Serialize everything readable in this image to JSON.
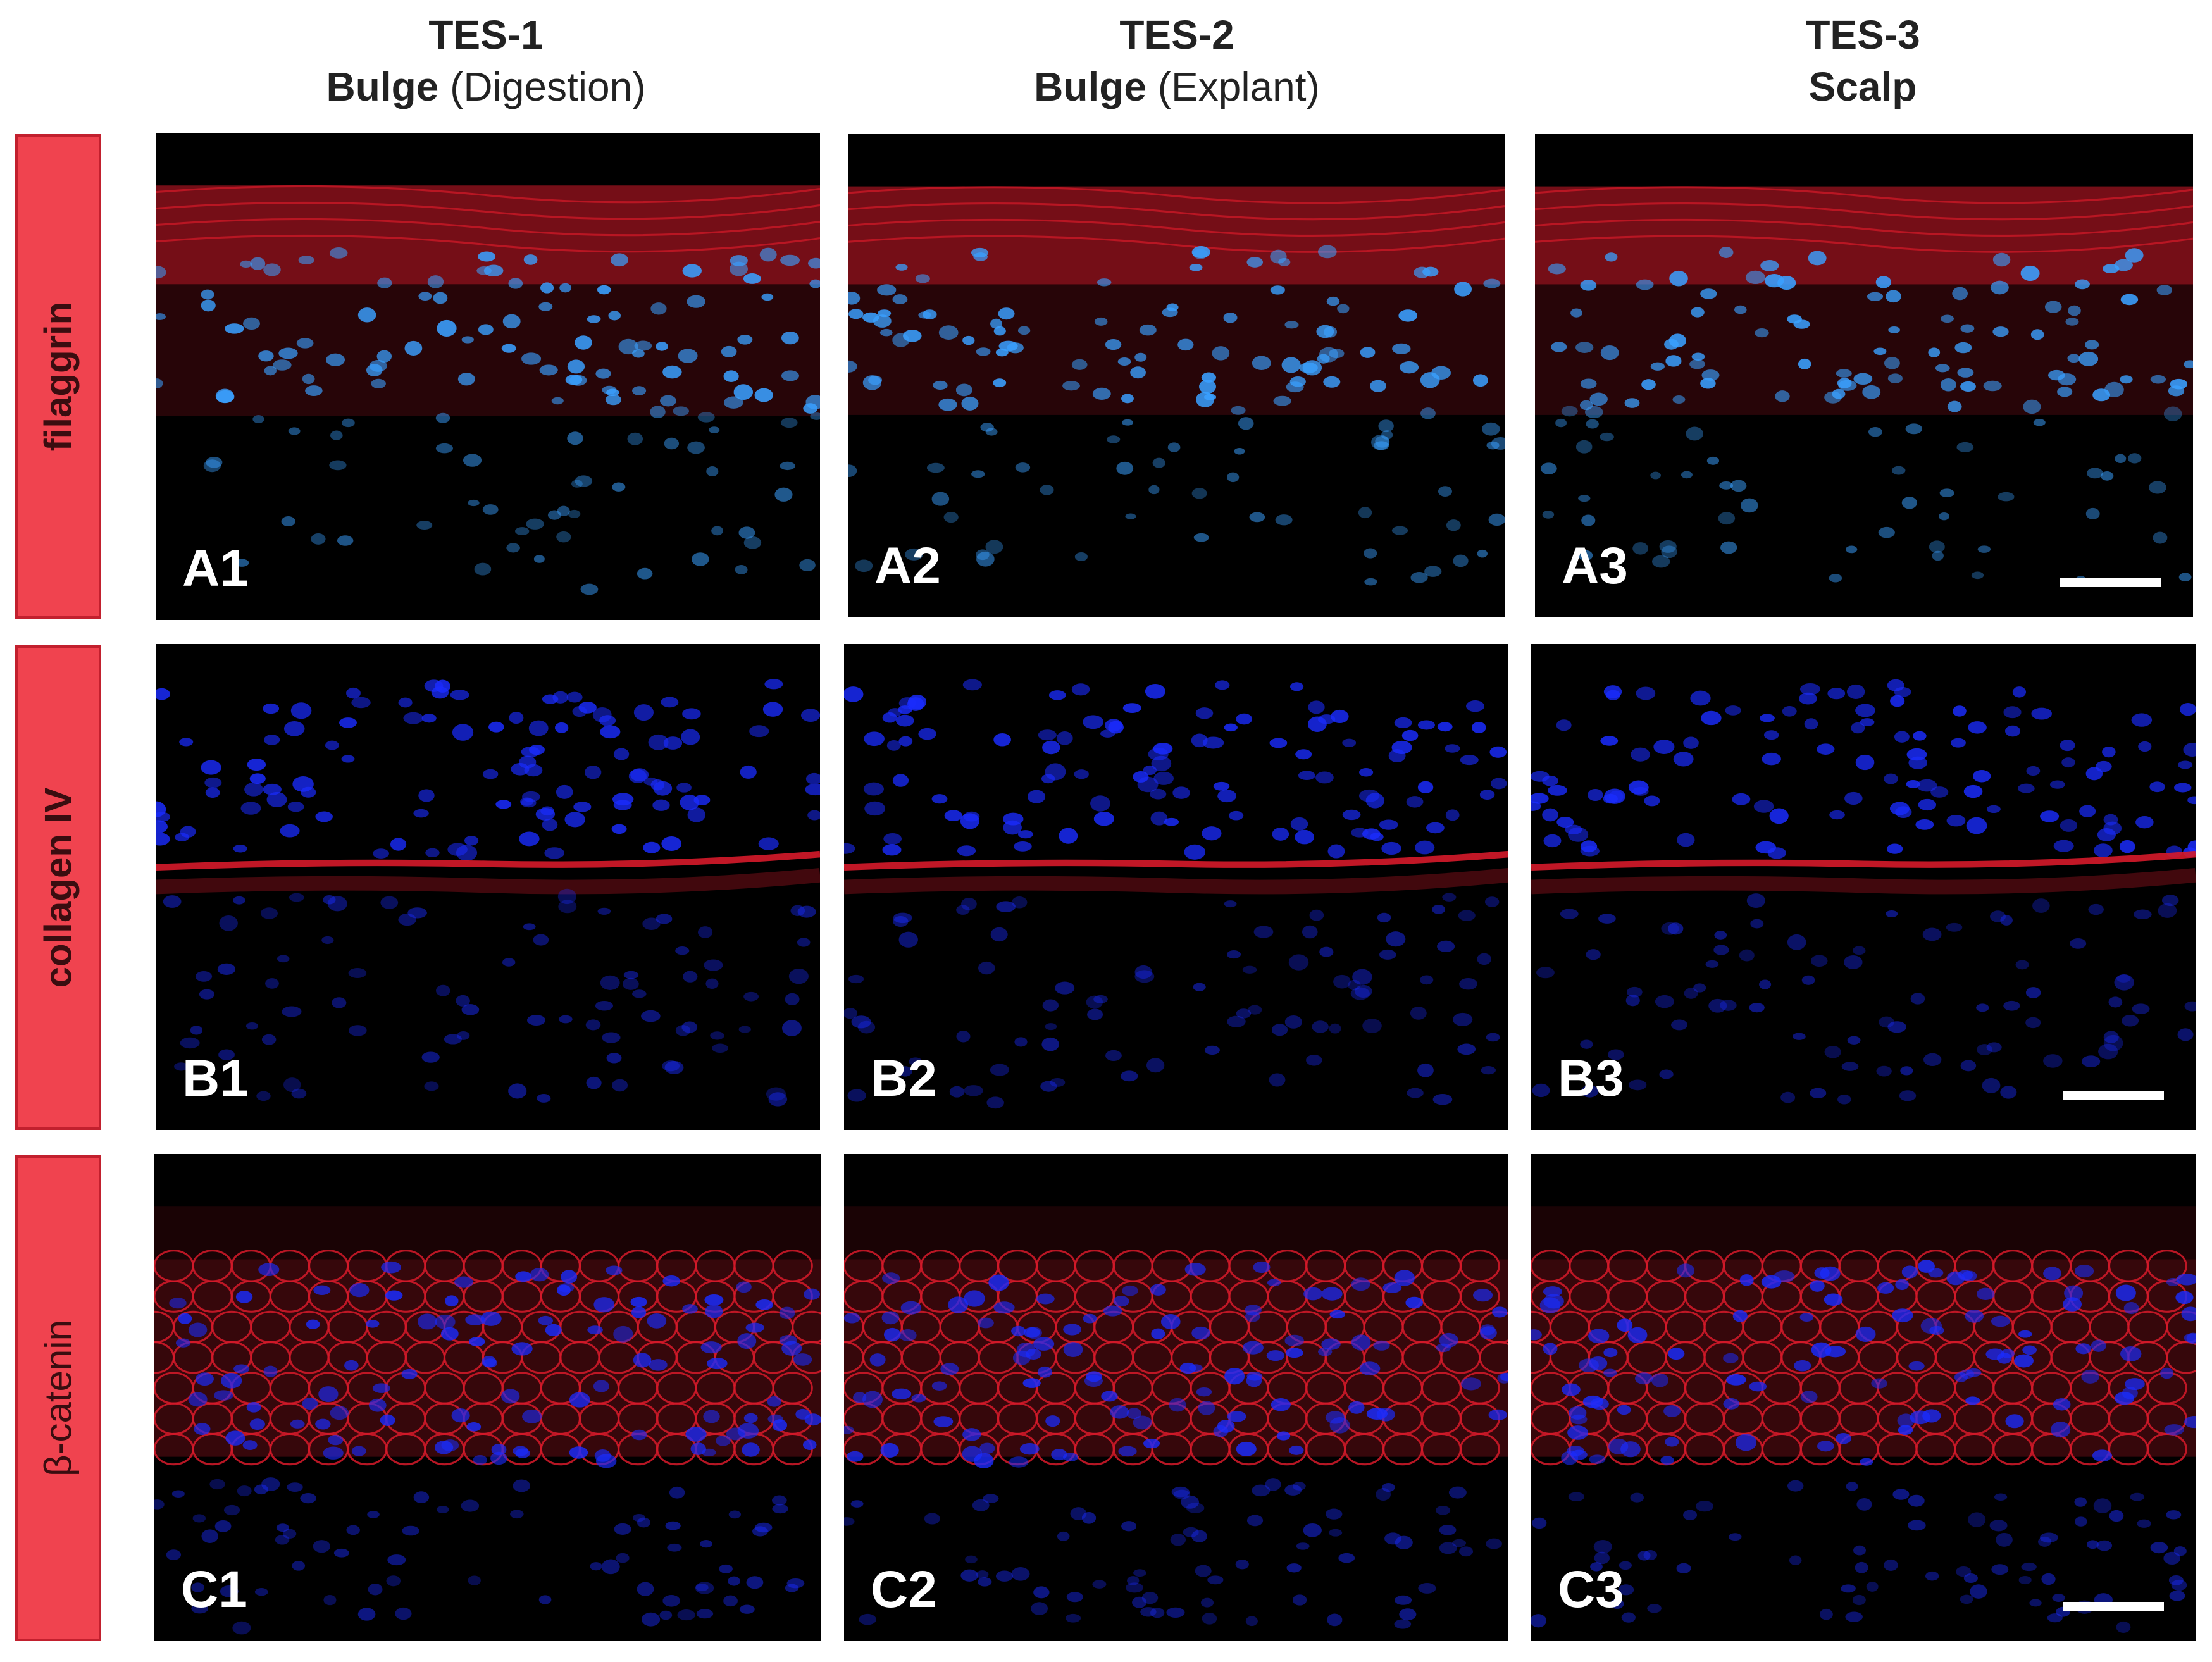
{
  "columns": [
    {
      "line1": "TES-1",
      "bold": "Bulge",
      "paren": "(Digestion)"
    },
    {
      "line1": "TES-2",
      "bold": "Bulge",
      "paren": "(Explant)"
    },
    {
      "line1": "TES-3",
      "bold": "Scalp",
      "paren": ""
    }
  ],
  "rows": [
    {
      "label": "filaggrin"
    },
    {
      "label": "collagen IV"
    },
    {
      "label": "β-catenin"
    }
  ],
  "panels": [
    [
      "A1",
      "A2",
      "A3"
    ],
    [
      "B1",
      "B2",
      "B3"
    ],
    [
      "C1",
      "C2",
      "C3"
    ]
  ],
  "colors": {
    "label_fill": "#f0434f",
    "label_border": "#c2202e",
    "stain_red": "#d61a2a",
    "stain_blue_filaggrin": "#3aa0ff",
    "stain_blue": "#1a2cff"
  }
}
